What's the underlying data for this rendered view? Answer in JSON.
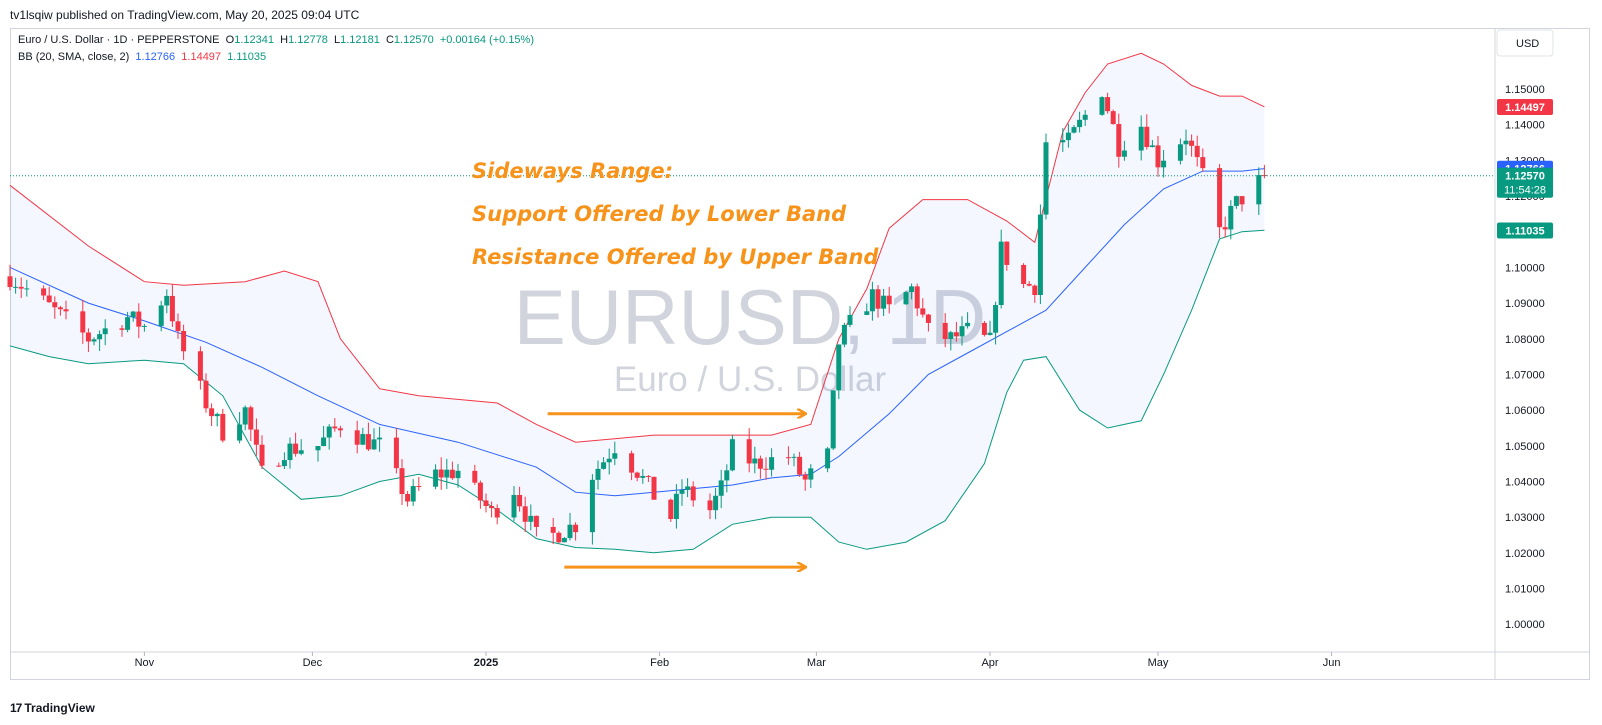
{
  "header": {
    "published": "tv1lsqiw published on TradingView.com, May 20, 2025 09:04 UTC"
  },
  "legend": {
    "symbol": "Euro / U.S. Dollar · 1D · PEPPERSTONE",
    "o_label": "O",
    "o": "1.12341",
    "h_label": "H",
    "h": "1.12778",
    "l_label": "L",
    "l": "1.12181",
    "c_label": "C",
    "c": "1.12570",
    "change": "+0.00164 (+0.15%)",
    "bb_label": "BB (20, SMA, close, 2)",
    "bb_basis": "1.12766",
    "bb_upper": "1.14497",
    "bb_lower": "1.11035"
  },
  "footer": {
    "brand": "TradingView"
  },
  "colors": {
    "up": "#089981",
    "down": "#f23645",
    "basis": "#2962ff",
    "upper": "#f23645",
    "lower": "#089981",
    "band_fill": "#2962ff",
    "annotation": "#f7931a",
    "watermark": "#d1d4dc",
    "price_line": "#089981"
  },
  "chart_data": {
    "type": "candlestick",
    "symbol": "EURUSD, 1D",
    "subtitle": "Euro / U.S. Dollar",
    "currency": "USD",
    "y_ticks": [
      "1.15000",
      "1.14000",
      "1.13000",
      "1.12000",
      "1.11000",
      "1.10000",
      "1.09000",
      "1.08000",
      "1.07000",
      "1.06000",
      "1.05000",
      "1.04000",
      "1.03000",
      "1.02000",
      "1.01000",
      "1.00000"
    ],
    "x_ticks": [
      {
        "label": "Nov",
        "date": "2024-11-01"
      },
      {
        "label": "Dec",
        "date": "2024-12-01"
      },
      {
        "label": "2025",
        "date": "2025-01-01",
        "bold": true
      },
      {
        "label": "Feb",
        "date": "2025-02-01"
      },
      {
        "label": "Mar",
        "date": "2025-03-01"
      },
      {
        "label": "Apr",
        "date": "2025-04-01"
      },
      {
        "label": "May",
        "date": "2025-05-01"
      },
      {
        "label": "Jun",
        "date": "2025-06-01"
      }
    ],
    "x_range": [
      "2024-10-08",
      "2025-06-30"
    ],
    "price_labels": [
      {
        "value": 1.14497,
        "text": "1.14497",
        "color": "#f23645"
      },
      {
        "value": 1.12766,
        "text": "1.12766",
        "color": "#2962ff"
      },
      {
        "value": 1.1257,
        "text": "1.12570",
        "sub": "11:54:28",
        "color": "#089981"
      },
      {
        "value": 1.11035,
        "text": "1.11035",
        "color": "#089981"
      }
    ],
    "last_price": 1.1257,
    "annotations": [
      "Sideways Range:",
      "Support Offered by Lower Band",
      "Resistance Offered by Upper Band"
    ],
    "close_points": [
      [
        "2024-10-08",
        1.0975
      ],
      [
        "2024-10-15",
        1.089
      ],
      [
        "2024-10-22",
        1.08
      ],
      [
        "2024-10-29",
        1.086
      ],
      [
        "2024-11-01",
        1.0835
      ],
      [
        "2024-11-05",
        1.093
      ],
      [
        "2024-11-07",
        1.08
      ],
      [
        "2024-11-12",
        1.062
      ],
      [
        "2024-11-15",
        1.054
      ],
      [
        "2024-11-19",
        1.06
      ],
      [
        "2024-11-22",
        1.042
      ],
      [
        "2024-11-26",
        1.049
      ],
      [
        "2024-12-02",
        1.05
      ],
      [
        "2024-12-06",
        1.056
      ],
      [
        "2024-12-10",
        1.052
      ],
      [
        "2024-12-13",
        1.05
      ],
      [
        "2024-12-18",
        1.035
      ],
      [
        "2024-12-23",
        1.042
      ],
      [
        "2024-12-27",
        1.043
      ],
      [
        "2025-01-02",
        1.031
      ],
      [
        "2025-01-06",
        1.038
      ],
      [
        "2025-01-10",
        1.0245
      ],
      [
        "2025-01-13",
        1.025
      ],
      [
        "2025-01-17",
        1.028
      ],
      [
        "2025-01-20",
        1.042
      ],
      [
        "2025-01-24",
        1.05
      ],
      [
        "2025-01-28",
        1.043
      ],
      [
        "2025-01-31",
        1.036
      ],
      [
        "2025-02-03",
        1.03
      ],
      [
        "2025-02-05",
        1.038
      ],
      [
        "2025-02-10",
        1.032
      ],
      [
        "2025-02-12",
        1.038
      ],
      [
        "2025-02-14",
        1.049
      ],
      [
        "2025-02-18",
        1.045
      ],
      [
        "2025-02-21",
        1.046
      ],
      [
        "2025-02-24",
        1.047
      ],
      [
        "2025-02-27",
        1.04
      ],
      [
        "2025-03-03",
        1.047
      ],
      [
        "2025-03-05",
        1.079
      ],
      [
        "2025-03-07",
        1.084
      ],
      [
        "2025-03-11",
        1.092
      ],
      [
        "2025-03-14",
        1.088
      ],
      [
        "2025-03-18",
        1.094
      ],
      [
        "2025-03-21",
        1.082
      ],
      [
        "2025-03-25",
        1.08
      ],
      [
        "2025-03-28",
        1.082
      ],
      [
        "2025-04-01",
        1.079
      ],
      [
        "2025-04-03",
        1.105
      ],
      [
        "2025-04-07",
        1.095
      ],
      [
        "2025-04-09",
        1.095
      ],
      [
        "2025-04-11",
        1.135
      ],
      [
        "2025-04-15",
        1.135
      ],
      [
        "2025-04-21",
        1.15
      ],
      [
        "2025-04-24",
        1.134
      ],
      [
        "2025-04-28",
        1.14
      ],
      [
        "2025-05-01",
        1.13
      ],
      [
        "2025-05-06",
        1.137
      ],
      [
        "2025-05-09",
        1.125
      ],
      [
        "2025-05-12",
        1.11
      ],
      [
        "2025-05-15",
        1.118
      ],
      [
        "2025-05-19",
        1.124
      ],
      [
        "2025-05-20",
        1.1257
      ]
    ],
    "bb_upper_points": [
      [
        "2024-10-08",
        1.123
      ],
      [
        "2024-10-22",
        1.106
      ],
      [
        "2024-11-01",
        1.096
      ],
      [
        "2024-11-08",
        1.095
      ],
      [
        "2024-11-19",
        1.096
      ],
      [
        "2024-11-26",
        1.099
      ],
      [
        "2024-12-02",
        1.096
      ],
      [
        "2024-12-06",
        1.08
      ],
      [
        "2024-12-13",
        1.066
      ],
      [
        "2024-12-20",
        1.064
      ],
      [
        "2024-12-27",
        1.063
      ],
      [
        "2025-01-03",
        1.062
      ],
      [
        "2025-01-10",
        1.056
      ],
      [
        "2025-01-17",
        1.051
      ],
      [
        "2025-01-24",
        1.052
      ],
      [
        "2025-01-31",
        1.053
      ],
      [
        "2025-02-07",
        1.053
      ],
      [
        "2025-02-14",
        1.053
      ],
      [
        "2025-02-21",
        1.053
      ],
      [
        "2025-02-28",
        1.056
      ],
      [
        "2025-03-05",
        1.08
      ],
      [
        "2025-03-10",
        1.094
      ],
      [
        "2025-03-14",
        1.111
      ],
      [
        "2025-03-20",
        1.119
      ],
      [
        "2025-03-28",
        1.119
      ],
      [
        "2025-04-04",
        1.113
      ],
      [
        "2025-04-09",
        1.107
      ],
      [
        "2025-04-14",
        1.138
      ],
      [
        "2025-04-18",
        1.149
      ],
      [
        "2025-04-22",
        1.157
      ],
      [
        "2025-04-28",
        1.16
      ],
      [
        "2025-05-02",
        1.157
      ],
      [
        "2025-05-07",
        1.151
      ],
      [
        "2025-05-12",
        1.148
      ],
      [
        "2025-05-16",
        1.148
      ],
      [
        "2025-05-20",
        1.145
      ]
    ],
    "bb_basis_points": [
      [
        "2024-10-08",
        1.1
      ],
      [
        "2024-10-22",
        1.09
      ],
      [
        "2024-11-01",
        1.085
      ],
      [
        "2024-11-12",
        1.079
      ],
      [
        "2024-11-22",
        1.072
      ],
      [
        "2024-12-02",
        1.064
      ],
      [
        "2024-12-13",
        1.056
      ],
      [
        "2024-12-27",
        1.051
      ],
      [
        "2025-01-10",
        1.044
      ],
      [
        "2025-01-17",
        1.037
      ],
      [
        "2025-01-24",
        1.036
      ],
      [
        "2025-01-31",
        1.037
      ],
      [
        "2025-02-07",
        1.038
      ],
      [
        "2025-02-14",
        1.039
      ],
      [
        "2025-02-21",
        1.041
      ],
      [
        "2025-02-28",
        1.042
      ],
      [
        "2025-03-05",
        1.047
      ],
      [
        "2025-03-14",
        1.059
      ],
      [
        "2025-03-21",
        1.07
      ],
      [
        "2025-03-28",
        1.076
      ],
      [
        "2025-04-04",
        1.082
      ],
      [
        "2025-04-11",
        1.088
      ],
      [
        "2025-04-18",
        1.1
      ],
      [
        "2025-04-25",
        1.112
      ],
      [
        "2025-05-02",
        1.122
      ],
      [
        "2025-05-09",
        1.127
      ],
      [
        "2025-05-16",
        1.127
      ],
      [
        "2025-05-20",
        1.1277
      ]
    ],
    "bb_lower_points": [
      [
        "2024-10-08",
        1.078
      ],
      [
        "2024-10-15",
        1.075
      ],
      [
        "2024-10-22",
        1.073
      ],
      [
        "2024-11-01",
        1.074
      ],
      [
        "2024-11-08",
        1.073
      ],
      [
        "2024-11-15",
        1.064
      ],
      [
        "2024-11-22",
        1.044
      ],
      [
        "2024-11-29",
        1.035
      ],
      [
        "2024-12-06",
        1.036
      ],
      [
        "2024-12-13",
        1.04
      ],
      [
        "2024-12-20",
        1.042
      ],
      [
        "2024-12-27",
        1.039
      ],
      [
        "2025-01-03",
        1.032
      ],
      [
        "2025-01-10",
        1.024
      ],
      [
        "2025-01-17",
        1.0215
      ],
      [
        "2025-01-24",
        1.021
      ],
      [
        "2025-01-31",
        1.02
      ],
      [
        "2025-02-07",
        1.021
      ],
      [
        "2025-02-14",
        1.028
      ],
      [
        "2025-02-21",
        1.03
      ],
      [
        "2025-02-28",
        1.03
      ],
      [
        "2025-03-05",
        1.023
      ],
      [
        "2025-03-10",
        1.021
      ],
      [
        "2025-03-17",
        1.023
      ],
      [
        "2025-03-24",
        1.029
      ],
      [
        "2025-03-31",
        1.045
      ],
      [
        "2025-04-04",
        1.065
      ],
      [
        "2025-04-07",
        1.074
      ],
      [
        "2025-04-11",
        1.075
      ],
      [
        "2025-04-17",
        1.06
      ],
      [
        "2025-04-22",
        1.055
      ],
      [
        "2025-04-28",
        1.057
      ],
      [
        "2025-05-02",
        1.07
      ],
      [
        "2025-05-07",
        1.088
      ],
      [
        "2025-05-12",
        1.108
      ],
      [
        "2025-05-16",
        1.11
      ],
      [
        "2025-05-20",
        1.1104
      ]
    ],
    "arrows": [
      {
        "from": [
          "2025-01-12",
          1.059
        ],
        "to": [
          "2025-02-27",
          1.059
        ]
      },
      {
        "from": [
          "2025-01-15",
          1.016
        ],
        "to": [
          "2025-02-27",
          1.016
        ]
      }
    ]
  }
}
